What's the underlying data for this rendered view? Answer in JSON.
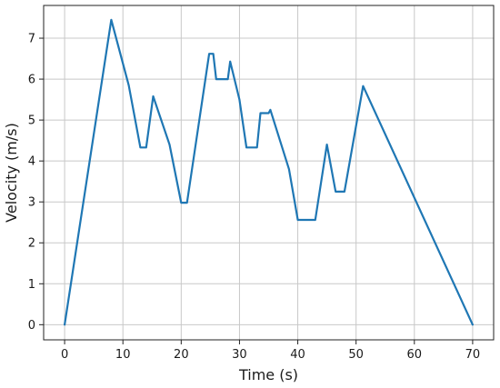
{
  "chart_data": {
    "type": "line",
    "title": "",
    "xlabel": "Time (s)",
    "ylabel": "Velocity (m/s)",
    "xlim": [
      -3.6,
      73.6
    ],
    "ylim": [
      -0.37,
      7.8
    ],
    "xticks": [
      0,
      10,
      20,
      30,
      40,
      50,
      60,
      70
    ],
    "yticks": [
      0,
      1,
      2,
      3,
      4,
      5,
      6,
      7
    ],
    "grid": true,
    "series": [
      {
        "color": "#1f77b4",
        "x": [
          0,
          8,
          11,
          13,
          14,
          15.2,
          18,
          20,
          21,
          24.8,
          25.5,
          26,
          28,
          28.4,
          30,
          31.2,
          33,
          33.6,
          35,
          35.3,
          38.5,
          40,
          43,
          45,
          46.5,
          48,
          51.2,
          70
        ],
        "y": [
          0,
          7.45,
          5.85,
          4.33,
          4.33,
          5.58,
          4.4,
          2.98,
          2.98,
          6.62,
          6.62,
          6.0,
          6.0,
          6.43,
          5.5,
          4.33,
          4.33,
          5.17,
          5.17,
          5.25,
          3.8,
          2.56,
          2.56,
          4.4,
          3.25,
          3.25,
          5.83,
          0
        ]
      }
    ]
  }
}
